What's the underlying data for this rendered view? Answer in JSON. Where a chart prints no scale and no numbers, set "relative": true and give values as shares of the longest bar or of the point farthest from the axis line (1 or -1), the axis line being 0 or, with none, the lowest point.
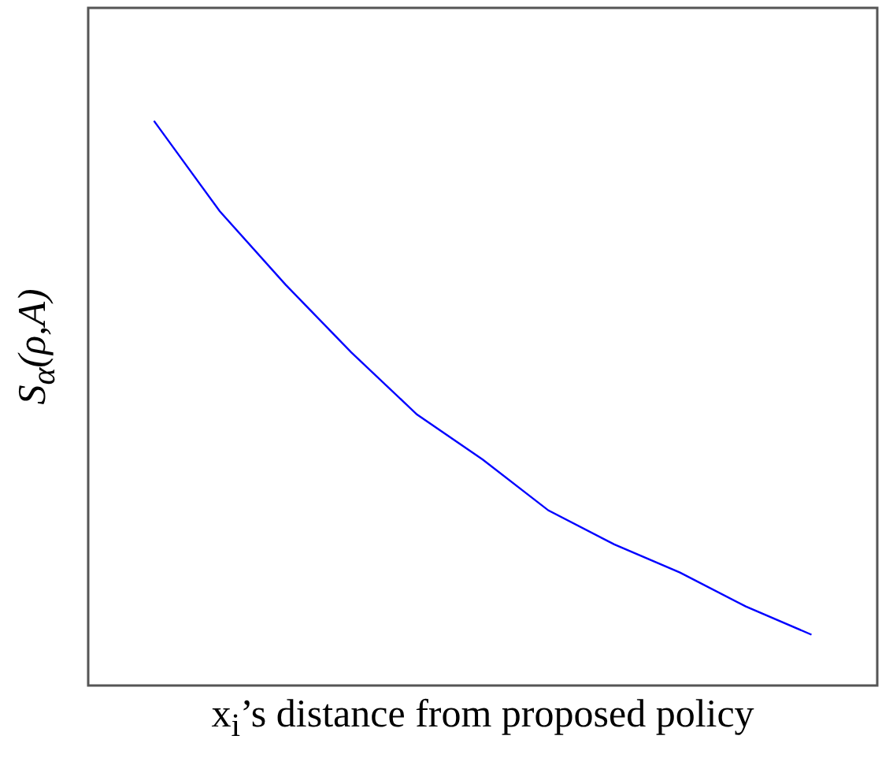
{
  "chart_data": {
    "type": "line",
    "relative": true,
    "marker": "none",
    "xlabel": "x$_{i}$’s distance from proposed policy",
    "ylabel": "S$_{α}$(ρ,A)",
    "categories": [
      null,
      null,
      null,
      null,
      null,
      null,
      null,
      null,
      null,
      null,
      null,
      null,
      null
    ],
    "series": [
      {
        "color": "#0000ff",
        "values": [
          null,
          1,
          0.84,
          0.71,
          0.59,
          0.48,
          0.4,
          0.31,
          0.25,
          0.2,
          0.14,
          0.09,
          null
        ]
      }
    ]
  }
}
